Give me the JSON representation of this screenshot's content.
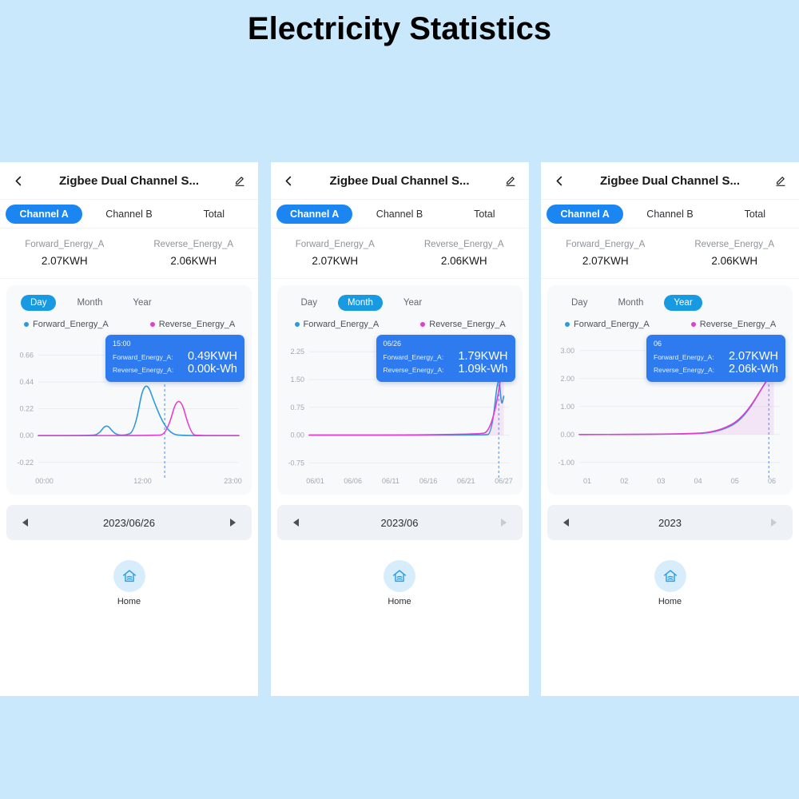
{
  "title": "Electricity Statistics",
  "colors": {
    "page_bg": "#c9e8fc",
    "channel_tab_active": "#1b86f2",
    "period_toggle_active": "#179ae2",
    "forward_line": "#2b99dc",
    "reverse_line": "#e23ed0",
    "tooltip_bg": "#2e7bf0"
  },
  "panels": [
    {
      "header": {
        "title": "Zigbee Dual Channel S..."
      },
      "tabs": [
        {
          "label": "Channel A",
          "active": true
        },
        {
          "label": "Channel B",
          "active": false
        },
        {
          "label": "Total",
          "active": false
        }
      ],
      "stats": [
        {
          "label": "Forward_Energy_A",
          "value": "2.07KWH"
        },
        {
          "label": "Reverse_Energy_A",
          "value": "2.06KWH"
        }
      ],
      "periods": [
        {
          "label": "Day",
          "active": true
        },
        {
          "label": "Month",
          "active": false
        },
        {
          "label": "Year",
          "active": false
        }
      ],
      "legend": [
        {
          "label": "Forward_Energy_A",
          "color": "#2b99dc"
        },
        {
          "label": "Reverse_Energy_A",
          "color": "#e23ed0"
        }
      ],
      "tooltip": {
        "title": "15:00",
        "rows": [
          {
            "label": "Forward_Energy_A:",
            "value": "0.49KWH"
          },
          {
            "label": "Reverse_Energy_A:",
            "value": "0.00k-Wh"
          }
        ]
      },
      "chart": {
        "type": "line",
        "y_domain": [
          -0.3,
          0.8
        ],
        "y_ticks": [
          {
            "v": 0.66,
            "label": "0.66"
          },
          {
            "v": 0.44,
            "label": "0.44"
          },
          {
            "v": 0.22,
            "label": "0.22"
          },
          {
            "v": 0.0,
            "label": "0.00"
          },
          {
            "v": -0.22,
            "label": "-0.22"
          }
        ],
        "x_ticks": [
          {
            "x": 0.03,
            "label": "00:00"
          },
          {
            "x": 0.52,
            "label": "12:00"
          },
          {
            "x": 0.97,
            "label": "23:00"
          }
        ],
        "cursor_x": 0.63,
        "series": [
          {
            "name": "Forward_Energy_A",
            "color": "#2b99dc",
            "fill": false,
            "points": [
              [
                0,
                0
              ],
              [
                0.26,
                0
              ],
              [
                0.3,
                0.01
              ],
              [
                0.34,
                0.1
              ],
              [
                0.38,
                0.01
              ],
              [
                0.43,
                0
              ],
              [
                0.48,
                0.03
              ],
              [
                0.53,
                0.49
              ],
              [
                0.59,
                0.22
              ],
              [
                0.63,
                0.08
              ],
              [
                0.67,
                0.01
              ],
              [
                0.72,
                0
              ],
              [
                1,
                0
              ]
            ]
          },
          {
            "name": "Reverse_Energy_A",
            "color": "#e23ed0",
            "fill": false,
            "points": [
              [
                0,
                0
              ],
              [
                0.58,
                0
              ],
              [
                0.64,
                0.01
              ],
              [
                0.7,
                0.37
              ],
              [
                0.76,
                0.01
              ],
              [
                0.8,
                0
              ],
              [
                1,
                0
              ]
            ]
          }
        ]
      },
      "date_nav": {
        "label": "2023/06/26",
        "prev_enabled": true,
        "next_enabled": true
      },
      "home_label": "Home"
    },
    {
      "header": {
        "title": "Zigbee Dual Channel S..."
      },
      "tabs": [
        {
          "label": "Channel A",
          "active": true
        },
        {
          "label": "Channel B",
          "active": false
        },
        {
          "label": "Total",
          "active": false
        }
      ],
      "stats": [
        {
          "label": "Forward_Energy_A",
          "value": "2.07KWH"
        },
        {
          "label": "Reverse_Energy_A",
          "value": "2.06KWH"
        }
      ],
      "periods": [
        {
          "label": "Day",
          "active": false
        },
        {
          "label": "Month",
          "active": true
        },
        {
          "label": "Year",
          "active": false
        }
      ],
      "legend": [
        {
          "label": "Forward_Energy_A",
          "color": "#2b99dc"
        },
        {
          "label": "Reverse_Energy_A",
          "color": "#e23ed0"
        }
      ],
      "tooltip": {
        "title": "06/26",
        "rows": [
          {
            "label": "Forward_Energy_A:",
            "value": "1.79KWH"
          },
          {
            "label": "Reverse_Energy_A:",
            "value": "1.09k-Wh"
          }
        ]
      },
      "chart": {
        "type": "line",
        "y_domain": [
          -1.0,
          2.62
        ],
        "y_ticks": [
          {
            "v": 2.25,
            "label": "2.25"
          },
          {
            "v": 1.5,
            "label": "1.50"
          },
          {
            "v": 0.75,
            "label": "0.75"
          },
          {
            "v": 0.0,
            "label": "0.00"
          },
          {
            "v": -0.75,
            "label": "-0.75"
          }
        ],
        "x_ticks": [
          {
            "x": 0.03,
            "label": "06/01"
          },
          {
            "x": 0.218,
            "label": "06/06"
          },
          {
            "x": 0.406,
            "label": "06/11"
          },
          {
            "x": 0.594,
            "label": "06/16"
          },
          {
            "x": 0.782,
            "label": "06/21"
          },
          {
            "x": 0.97,
            "label": "06/27"
          }
        ],
        "cursor_x": 0.945,
        "series": [
          {
            "name": "Forward_Energy_A",
            "color": "#2b99dc",
            "fill": false,
            "points": [
              [
                0,
                0
              ],
              [
                0.87,
                0
              ],
              [
                0.91,
                0.03
              ],
              [
                0.945,
                1.79
              ],
              [
                0.958,
                0.75
              ],
              [
                0.97,
                1.05
              ]
            ]
          },
          {
            "name": "Reverse_Energy_A",
            "color": "#e23ed0",
            "fill": true,
            "points": [
              [
                0,
                0
              ],
              [
                0.85,
                0
              ],
              [
                0.9,
                0.12
              ],
              [
                0.945,
                1.09
              ],
              [
                0.97,
                2.3
              ]
            ]
          }
        ]
      },
      "date_nav": {
        "label": "2023/06",
        "prev_enabled": true,
        "next_enabled": false
      },
      "home_label": "Home"
    },
    {
      "header": {
        "title": "Zigbee Dual Channel S..."
      },
      "tabs": [
        {
          "label": "Channel A",
          "active": true
        },
        {
          "label": "Channel B",
          "active": false
        },
        {
          "label": "Total",
          "active": false
        }
      ],
      "stats": [
        {
          "label": "Forward_Energy_A",
          "value": "2.07KWH"
        },
        {
          "label": "Reverse_Energy_A",
          "value": "2.06KWH"
        }
      ],
      "periods": [
        {
          "label": "Day",
          "active": false
        },
        {
          "label": "Month",
          "active": false
        },
        {
          "label": "Year",
          "active": true
        }
      ],
      "legend": [
        {
          "label": "Forward_Energy_A",
          "color": "#2b99dc"
        },
        {
          "label": "Reverse_Energy_A",
          "color": "#e23ed0"
        }
      ],
      "tooltip": {
        "title": "06",
        "rows": [
          {
            "label": "Forward_Energy_A:",
            "value": "2.07KWH"
          },
          {
            "label": "Reverse_Energy_A:",
            "value": "2.06k-Wh"
          }
        ]
      },
      "chart": {
        "type": "line",
        "y_domain": [
          -1.35,
          3.45
        ],
        "y_ticks": [
          {
            "v": 3.0,
            "label": "3.00"
          },
          {
            "v": 2.0,
            "label": "2.00"
          },
          {
            "v": 1.0,
            "label": "1.00"
          },
          {
            "v": 0.0,
            "label": "0.00"
          },
          {
            "v": -1.0,
            "label": "-1.00"
          }
        ],
        "x_ticks": [
          {
            "x": 0.04,
            "label": "01"
          },
          {
            "x": 0.224,
            "label": "02"
          },
          {
            "x": 0.408,
            "label": "03"
          },
          {
            "x": 0.592,
            "label": "04"
          },
          {
            "x": 0.776,
            "label": "05"
          },
          {
            "x": 0.96,
            "label": "06"
          }
        ],
        "cursor_x": 0.945,
        "series": [
          {
            "name": "Forward_Energy_A",
            "color": "#2b99dc",
            "fill": false,
            "points": [
              [
                0,
                0
              ],
              [
                0.55,
                0
              ],
              [
                0.7,
                0.1
              ],
              [
                0.82,
                0.55
              ],
              [
                0.945,
                2.07
              ],
              [
                0.97,
                2.2
              ]
            ]
          },
          {
            "name": "Reverse_Energy_A",
            "color": "#e23ed0",
            "fill": true,
            "points": [
              [
                0,
                0
              ],
              [
                0.55,
                0
              ],
              [
                0.7,
                0.12
              ],
              [
                0.82,
                0.6
              ],
              [
                0.945,
                2.06
              ],
              [
                0.97,
                2.25
              ]
            ]
          }
        ]
      },
      "date_nav": {
        "label": "2023",
        "prev_enabled": true,
        "next_enabled": false
      },
      "home_label": "Home"
    }
  ]
}
